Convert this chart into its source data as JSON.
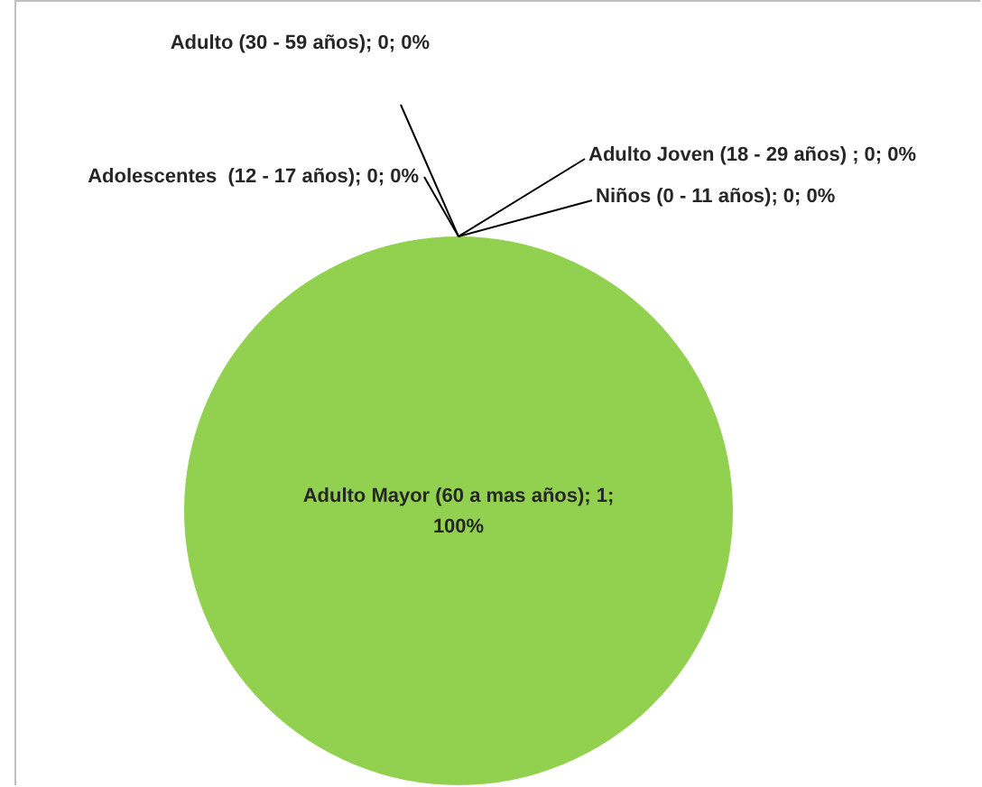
{
  "chart_data": {
    "type": "pie",
    "categories": [
      "Niños (0 - 11 años)",
      "Adolescentes  (12 - 17 años)",
      "Adulto Joven (18 - 29 años) ",
      "Adulto (30 - 59 años)",
      "Adulto Mayor (60 a mas años)"
    ],
    "values": [
      0,
      0,
      0,
      0,
      1
    ],
    "colors": [
      "#4472c4",
      "#ed7d31",
      "#a5a5a5",
      "#ffc000",
      "#92d050"
    ],
    "value_labels": [
      "; 0; 0%",
      "; 0; 0%",
      "; 0; 0%",
      "; 0; 0%",
      "; 1; 100%"
    ],
    "legend": false
  }
}
